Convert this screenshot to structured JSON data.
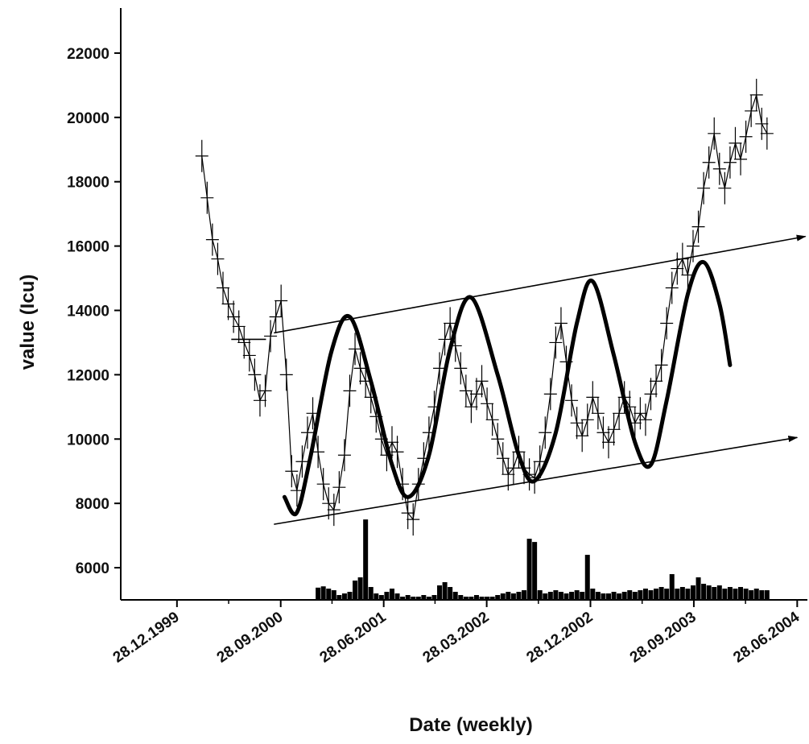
{
  "chart_data": {
    "type": "line",
    "title": "",
    "xlabel": "Date (weekly)",
    "ylabel": "value (Icu)",
    "x_axis": {
      "type": "date",
      "range": [
        "1999-08-01",
        "2004-07-25"
      ],
      "ticks": [
        {
          "date": "1999-12-28",
          "label": "28.12.1999"
        },
        {
          "date": "2000-09-28",
          "label": "28.09.2000"
        },
        {
          "date": "2001-06-28",
          "label": "28.06.2001"
        },
        {
          "date": "2002-03-28",
          "label": "28.03.2002"
        },
        {
          "date": "2002-12-28",
          "label": "28.12.2002"
        },
        {
          "date": "2003-09-28",
          "label": "28.09.2003"
        },
        {
          "date": "2004-06-28",
          "label": "28.06.2004"
        }
      ]
    },
    "y_axis": {
      "range": [
        5000,
        23400
      ],
      "ticks": [
        6000,
        8000,
        10000,
        12000,
        14000,
        16000,
        18000,
        20000,
        22000
      ]
    },
    "grid": false,
    "legend": "none",
    "colors": {
      "series": "#000000",
      "background": "#ffffff"
    },
    "series": [
      {
        "kind": "weekly-data-with-errorbars",
        "points": [
          {
            "x": "2000-03-03",
            "y": 18800
          },
          {
            "x": "2000-03-17",
            "y": 17500
          },
          {
            "x": "2000-03-31",
            "y": 16200
          },
          {
            "x": "2000-04-14",
            "y": 15600
          },
          {
            "x": "2000-04-28",
            "y": 14700
          },
          {
            "x": "2000-05-12",
            "y": 14200
          },
          {
            "x": "2000-05-26",
            "y": 13800
          },
          {
            "x": "2000-06-09",
            "y": 13500
          },
          {
            "x": "2000-06-23",
            "y": 13000
          },
          {
            "x": "2000-07-07",
            "y": 12600
          },
          {
            "x": "2000-07-21",
            "y": 12000
          },
          {
            "x": "2000-08-04",
            "y": 11200
          },
          {
            "x": "2000-08-18",
            "y": 11500
          },
          {
            "x": "2000-09-01",
            "y": 13200
          },
          {
            "x": "2000-09-15",
            "y": 13800
          },
          {
            "x": "2000-09-29",
            "y": 14300
          },
          {
            "x": "2000-10-13",
            "y": 12000
          },
          {
            "x": "2000-10-27",
            "y": 9000
          },
          {
            "x": "2000-11-10",
            "y": 8400
          },
          {
            "x": "2000-11-24",
            "y": 9300
          },
          {
            "x": "2000-12-08",
            "y": 10200
          },
          {
            "x": "2000-12-22",
            "y": 10800
          },
          {
            "x": "2001-01-05",
            "y": 9600
          },
          {
            "x": "2001-01-19",
            "y": 8600
          },
          {
            "x": "2001-02-02",
            "y": 8000
          },
          {
            "x": "2001-02-16",
            "y": 7800
          },
          {
            "x": "2001-03-02",
            "y": 8500
          },
          {
            "x": "2001-03-16",
            "y": 9500
          },
          {
            "x": "2001-03-30",
            "y": 11500
          },
          {
            "x": "2001-04-13",
            "y": 12800
          },
          {
            "x": "2001-04-27",
            "y": 12200
          },
          {
            "x": "2001-05-11",
            "y": 11800
          },
          {
            "x": "2001-05-25",
            "y": 11300
          },
          {
            "x": "2001-06-08",
            "y": 10700
          },
          {
            "x": "2001-06-22",
            "y": 10000
          },
          {
            "x": "2001-07-06",
            "y": 9500
          },
          {
            "x": "2001-07-20",
            "y": 9900
          },
          {
            "x": "2001-08-03",
            "y": 9600
          },
          {
            "x": "2001-08-17",
            "y": 8600
          },
          {
            "x": "2001-08-31",
            "y": 7700
          },
          {
            "x": "2001-09-14",
            "y": 7500
          },
          {
            "x": "2001-09-28",
            "y": 8600
          },
          {
            "x": "2001-10-12",
            "y": 9400
          },
          {
            "x": "2001-10-26",
            "y": 10200
          },
          {
            "x": "2001-11-09",
            "y": 11000
          },
          {
            "x": "2001-11-23",
            "y": 12200
          },
          {
            "x": "2001-12-07",
            "y": 13100
          },
          {
            "x": "2001-12-21",
            "y": 13600
          },
          {
            "x": "2002-01-04",
            "y": 12900
          },
          {
            "x": "2002-01-18",
            "y": 12200
          },
          {
            "x": "2002-02-01",
            "y": 11500
          },
          {
            "x": "2002-02-15",
            "y": 11000
          },
          {
            "x": "2002-03-01",
            "y": 11400
          },
          {
            "x": "2002-03-15",
            "y": 11800
          },
          {
            "x": "2002-03-29",
            "y": 11100
          },
          {
            "x": "2002-04-12",
            "y": 10600
          },
          {
            "x": "2002-04-26",
            "y": 10000
          },
          {
            "x": "2002-05-10",
            "y": 9400
          },
          {
            "x": "2002-05-24",
            "y": 8900
          },
          {
            "x": "2002-06-07",
            "y": 9100
          },
          {
            "x": "2002-06-21",
            "y": 9600
          },
          {
            "x": "2002-07-05",
            "y": 9100
          },
          {
            "x": "2002-07-19",
            "y": 8900
          },
          {
            "x": "2002-08-02",
            "y": 8800
          },
          {
            "x": "2002-08-16",
            "y": 9300
          },
          {
            "x": "2002-08-30",
            "y": 10200
          },
          {
            "x": "2002-09-13",
            "y": 11400
          },
          {
            "x": "2002-09-27",
            "y": 13000
          },
          {
            "x": "2002-10-11",
            "y": 13600
          },
          {
            "x": "2002-10-25",
            "y": 12400
          },
          {
            "x": "2002-11-08",
            "y": 11200
          },
          {
            "x": "2002-11-22",
            "y": 10500
          },
          {
            "x": "2002-12-06",
            "y": 10100
          },
          {
            "x": "2002-12-20",
            "y": 10600
          },
          {
            "x": "2003-01-03",
            "y": 11300
          },
          {
            "x": "2003-01-17",
            "y": 10800
          },
          {
            "x": "2003-01-31",
            "y": 10200
          },
          {
            "x": "2003-02-14",
            "y": 9900
          },
          {
            "x": "2003-02-28",
            "y": 10300
          },
          {
            "x": "2003-03-14",
            "y": 10800
          },
          {
            "x": "2003-03-28",
            "y": 11300
          },
          {
            "x": "2003-04-11",
            "y": 11000
          },
          {
            "x": "2003-04-25",
            "y": 10500
          },
          {
            "x": "2003-05-09",
            "y": 10800
          },
          {
            "x": "2003-05-23",
            "y": 10600
          },
          {
            "x": "2003-06-06",
            "y": 11400
          },
          {
            "x": "2003-06-20",
            "y": 11800
          },
          {
            "x": "2003-07-04",
            "y": 12300
          },
          {
            "x": "2003-07-18",
            "y": 13600
          },
          {
            "x": "2003-08-01",
            "y": 14700
          },
          {
            "x": "2003-08-15",
            "y": 15300
          },
          {
            "x": "2003-08-29",
            "y": 15600
          },
          {
            "x": "2003-09-12",
            "y": 15100
          },
          {
            "x": "2003-09-26",
            "y": 16000
          },
          {
            "x": "2003-10-10",
            "y": 16600
          },
          {
            "x": "2003-10-24",
            "y": 17800
          },
          {
            "x": "2003-11-07",
            "y": 18600
          },
          {
            "x": "2003-11-21",
            "y": 19500
          },
          {
            "x": "2003-12-05",
            "y": 18400
          },
          {
            "x": "2003-12-19",
            "y": 17800
          },
          {
            "x": "2004-01-02",
            "y": 18600
          },
          {
            "x": "2004-01-16",
            "y": 19200
          },
          {
            "x": "2004-01-30",
            "y": 18700
          },
          {
            "x": "2004-02-13",
            "y": 19400
          },
          {
            "x": "2004-02-27",
            "y": 20200
          },
          {
            "x": "2004-03-12",
            "y": 20700
          },
          {
            "x": "2004-03-26",
            "y": 19800
          },
          {
            "x": "2004-04-09",
            "y": 19500
          }
        ]
      },
      {
        "kind": "sinusoidal-fit",
        "points": [
          {
            "x": "2000-10-08",
            "y": 8200
          },
          {
            "x": "2000-11-09",
            "y": 7700
          },
          {
            "x": "2000-12-15",
            "y": 9400
          },
          {
            "x": "2001-02-09",
            "y": 12700
          },
          {
            "x": "2001-03-30",
            "y": 13800
          },
          {
            "x": "2001-05-25",
            "y": 11800
          },
          {
            "x": "2001-07-20",
            "y": 9200
          },
          {
            "x": "2001-09-02",
            "y": 8200
          },
          {
            "x": "2001-10-26",
            "y": 9500
          },
          {
            "x": "2001-12-21",
            "y": 12800
          },
          {
            "x": "2002-02-15",
            "y": 14400
          },
          {
            "x": "2002-04-26",
            "y": 12000
          },
          {
            "x": "2002-06-21",
            "y": 9500
          },
          {
            "x": "2002-08-02",
            "y": 8700
          },
          {
            "x": "2002-09-27",
            "y": 10200
          },
          {
            "x": "2002-11-22",
            "y": 13600
          },
          {
            "x": "2003-01-03",
            "y": 14900
          },
          {
            "x": "2003-02-28",
            "y": 12600
          },
          {
            "x": "2003-04-25",
            "y": 9900
          },
          {
            "x": "2003-06-06",
            "y": 9200
          },
          {
            "x": "2003-07-18",
            "y": 11200
          },
          {
            "x": "2003-09-12",
            "y": 14500
          },
          {
            "x": "2003-10-24",
            "y": 15500
          },
          {
            "x": "2003-12-05",
            "y": 14200
          },
          {
            "x": "2004-01-02",
            "y": 12300
          }
        ]
      },
      {
        "kind": "weekly-volume-bars",
        "points": [
          {
            "x": "2001-01-05",
            "y": 5380
          },
          {
            "x": "2001-01-19",
            "y": 5420
          },
          {
            "x": "2001-02-02",
            "y": 5350
          },
          {
            "x": "2001-02-16",
            "y": 5300
          },
          {
            "x": "2001-03-02",
            "y": 5150
          },
          {
            "x": "2001-03-16",
            "y": 5200
          },
          {
            "x": "2001-03-30",
            "y": 5250
          },
          {
            "x": "2001-04-13",
            "y": 5600
          },
          {
            "x": "2001-04-27",
            "y": 5700
          },
          {
            "x": "2001-05-11",
            "y": 7500
          },
          {
            "x": "2001-05-25",
            "y": 5400
          },
          {
            "x": "2001-06-08",
            "y": 5200
          },
          {
            "x": "2001-06-22",
            "y": 5150
          },
          {
            "x": "2001-07-06",
            "y": 5250
          },
          {
            "x": "2001-07-20",
            "y": 5350
          },
          {
            "x": "2001-08-03",
            "y": 5200
          },
          {
            "x": "2001-08-17",
            "y": 5100
          },
          {
            "x": "2001-08-31",
            "y": 5150
          },
          {
            "x": "2001-09-14",
            "y": 5100
          },
          {
            "x": "2001-09-28",
            "y": 5100
          },
          {
            "x": "2001-10-12",
            "y": 5150
          },
          {
            "x": "2001-10-26",
            "y": 5100
          },
          {
            "x": "2001-11-09",
            "y": 5150
          },
          {
            "x": "2001-11-23",
            "y": 5450
          },
          {
            "x": "2001-12-07",
            "y": 5550
          },
          {
            "x": "2001-12-21",
            "y": 5400
          },
          {
            "x": "2002-01-04",
            "y": 5250
          },
          {
            "x": "2002-01-18",
            "y": 5150
          },
          {
            "x": "2002-02-01",
            "y": 5100
          },
          {
            "x": "2002-02-15",
            "y": 5100
          },
          {
            "x": "2002-03-01",
            "y": 5150
          },
          {
            "x": "2002-03-15",
            "y": 5100
          },
          {
            "x": "2002-03-29",
            "y": 5100
          },
          {
            "x": "2002-04-12",
            "y": 5100
          },
          {
            "x": "2002-04-26",
            "y": 5150
          },
          {
            "x": "2002-05-10",
            "y": 5200
          },
          {
            "x": "2002-05-24",
            "y": 5250
          },
          {
            "x": "2002-06-07",
            "y": 5200
          },
          {
            "x": "2002-06-21",
            "y": 5250
          },
          {
            "x": "2002-07-05",
            "y": 5300
          },
          {
            "x": "2002-07-19",
            "y": 6900
          },
          {
            "x": "2002-08-02",
            "y": 6800
          },
          {
            "x": "2002-08-16",
            "y": 5300
          },
          {
            "x": "2002-08-30",
            "y": 5200
          },
          {
            "x": "2002-09-13",
            "y": 5250
          },
          {
            "x": "2002-09-27",
            "y": 5300
          },
          {
            "x": "2002-10-11",
            "y": 5250
          },
          {
            "x": "2002-10-25",
            "y": 5200
          },
          {
            "x": "2002-11-08",
            "y": 5250
          },
          {
            "x": "2002-11-22",
            "y": 5300
          },
          {
            "x": "2002-12-06",
            "y": 5250
          },
          {
            "x": "2002-12-20",
            "y": 6400
          },
          {
            "x": "2003-01-03",
            "y": 5350
          },
          {
            "x": "2003-01-17",
            "y": 5250
          },
          {
            "x": "2003-01-31",
            "y": 5200
          },
          {
            "x": "2003-02-14",
            "y": 5200
          },
          {
            "x": "2003-02-28",
            "y": 5250
          },
          {
            "x": "2003-03-14",
            "y": 5200
          },
          {
            "x": "2003-03-28",
            "y": 5250
          },
          {
            "x": "2003-04-11",
            "y": 5300
          },
          {
            "x": "2003-04-25",
            "y": 5250
          },
          {
            "x": "2003-05-09",
            "y": 5300
          },
          {
            "x": "2003-05-23",
            "y": 5350
          },
          {
            "x": "2003-06-06",
            "y": 5300
          },
          {
            "x": "2003-06-20",
            "y": 5350
          },
          {
            "x": "2003-07-04",
            "y": 5400
          },
          {
            "x": "2003-07-18",
            "y": 5350
          },
          {
            "x": "2003-08-01",
            "y": 5800
          },
          {
            "x": "2003-08-15",
            "y": 5350
          },
          {
            "x": "2003-08-29",
            "y": 5400
          },
          {
            "x": "2003-09-12",
            "y": 5350
          },
          {
            "x": "2003-09-26",
            "y": 5450
          },
          {
            "x": "2003-10-10",
            "y": 5700
          },
          {
            "x": "2003-10-24",
            "y": 5500
          },
          {
            "x": "2003-11-07",
            "y": 5450
          },
          {
            "x": "2003-11-21",
            "y": 5400
          },
          {
            "x": "2003-12-05",
            "y": 5450
          },
          {
            "x": "2003-12-19",
            "y": 5350
          },
          {
            "x": "2004-01-02",
            "y": 5400
          },
          {
            "x": "2004-01-16",
            "y": 5350
          },
          {
            "x": "2004-01-30",
            "y": 5400
          },
          {
            "x": "2004-02-13",
            "y": 5350
          },
          {
            "x": "2004-02-27",
            "y": 5300
          },
          {
            "x": "2004-03-12",
            "y": 5350
          },
          {
            "x": "2004-03-26",
            "y": 5300
          },
          {
            "x": "2004-04-09",
            "y": 5300
          }
        ]
      },
      {
        "kind": "upper-channel-line",
        "arrow": true,
        "points": [
          {
            "x": "2000-09-10",
            "y": 13300
          },
          {
            "x": "2004-07-20",
            "y": 16300
          }
        ]
      },
      {
        "kind": "lower-channel-line",
        "arrow": true,
        "points": [
          {
            "x": "2000-09-10",
            "y": 7350
          },
          {
            "x": "2004-06-28",
            "y": 10050
          }
        ]
      },
      {
        "kind": "start-marker",
        "points": [
          {
            "x": "2000-05-20",
            "y": 13100
          },
          {
            "x": "2000-08-20",
            "y": 13100
          }
        ]
      }
    ]
  }
}
